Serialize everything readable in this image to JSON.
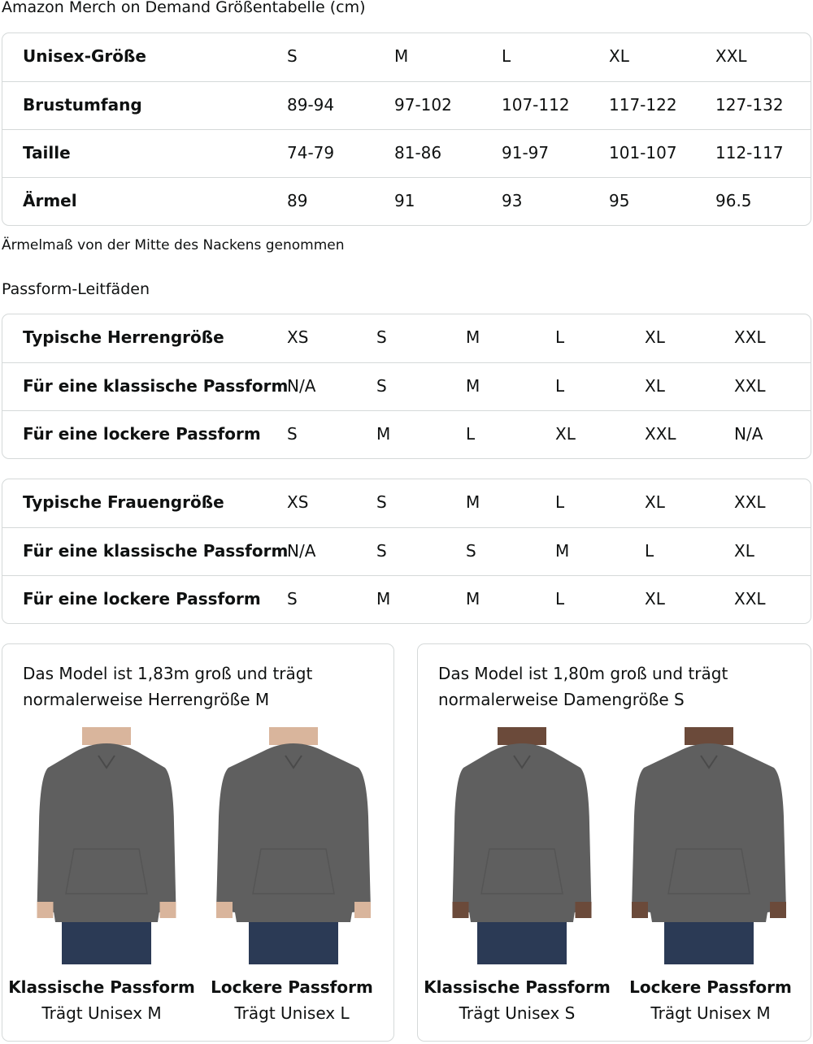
{
  "size_chart": {
    "title": "Amazon Merch on Demand Größentabelle (cm)",
    "rows": [
      {
        "label": "Unisex-Größe",
        "values": [
          "S",
          "M",
          "L",
          "XL",
          "XXL"
        ]
      },
      {
        "label": "Brustumfang",
        "values": [
          "89-94",
          "97-102",
          "107-112",
          "117-122",
          "127-132"
        ]
      },
      {
        "label": "Taille",
        "values": [
          "74-79",
          "81-86",
          "91-97",
          "101-107",
          "112-117"
        ]
      },
      {
        "label": "Ärmel",
        "values": [
          "89",
          "91",
          "93",
          "95",
          "96.5"
        ]
      }
    ],
    "note": "Ärmelmaß von der Mitte des Nackens genommen"
  },
  "fit_guides": {
    "title": "Passform-Leitfäden",
    "men": [
      {
        "label": "Typische Herrengröße",
        "values": [
          "XS",
          "S",
          "M",
          "L",
          "XL",
          "XXL"
        ]
      },
      {
        "label": "Für eine klassische Passform",
        "values": [
          "N/A",
          "S",
          "M",
          "L",
          "XL",
          "XXL"
        ]
      },
      {
        "label": "Für eine lockere Passform",
        "values": [
          "S",
          "M",
          "L",
          "XL",
          "XXL",
          "N/A"
        ]
      }
    ],
    "women": [
      {
        "label": "Typische Frauengröße",
        "values": [
          "XS",
          "S",
          "M",
          "L",
          "XL",
          "XXL"
        ]
      },
      {
        "label": "Für eine klassische Passform",
        "values": [
          "N/A",
          "S",
          "S",
          "M",
          "L",
          "XL"
        ]
      },
      {
        "label": "Für eine lockere Passform",
        "values": [
          "S",
          "M",
          "M",
          "L",
          "XL",
          "XXL"
        ]
      }
    ]
  },
  "models": [
    {
      "description": "Das Model ist 1,83m groß und trägt normalerweise Herrengröße M",
      "figures": [
        {
          "fit": "Klassische Passform",
          "wears": "Trägt Unisex M"
        },
        {
          "fit": "Lockere Passform",
          "wears": "Trägt Unisex L"
        }
      ]
    },
    {
      "description": "Das Model ist 1,80m groß und trägt normalerweise Damengröße S",
      "figures": [
        {
          "fit": "Klassische Passform",
          "wears": "Trägt Unisex S"
        },
        {
          "fit": "Lockere Passform",
          "wears": "Trägt Unisex M"
        }
      ]
    }
  ],
  "colors": {
    "hoodie": "#5f5f5f",
    "jeans": "#2b3a55",
    "border": "#d5d9d9"
  }
}
